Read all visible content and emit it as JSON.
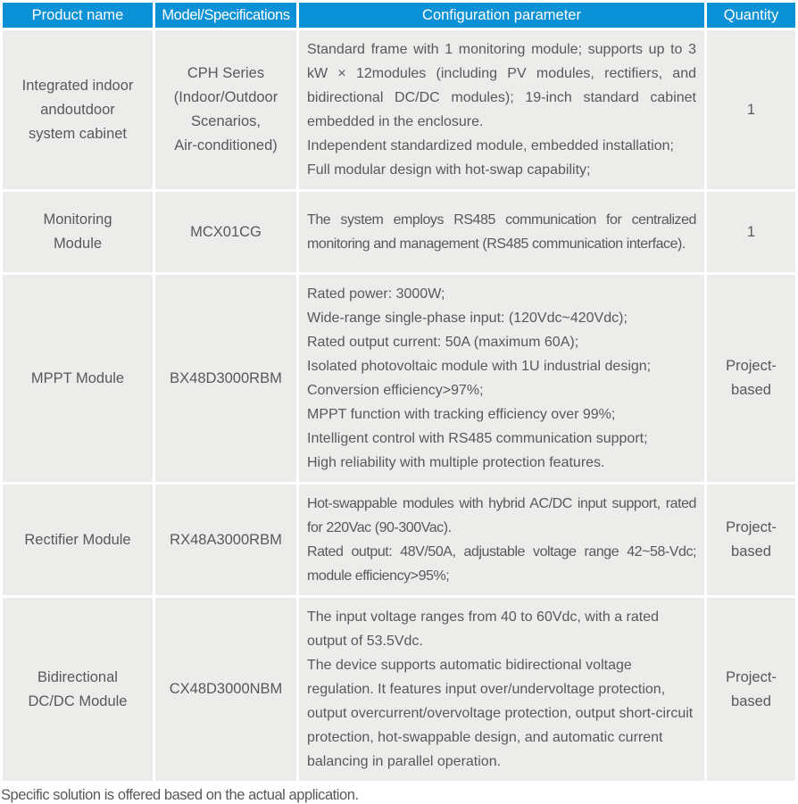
{
  "colors": {
    "header_bg": "#0b91d6",
    "header_text": "#ffffff",
    "cell_bg": "#ececea",
    "body_text": "#5a5858"
  },
  "table": {
    "columns": [
      {
        "label": "Product name"
      },
      {
        "label": "Model/Specifications"
      },
      {
        "label": "Configuration parameter"
      },
      {
        "label": "Quantity"
      }
    ],
    "rows": [
      {
        "product": "Integrated indoor\nandoutdoor\nsystem cabinet",
        "model": "CPH Series\n(Indoor/Outdoor\nScenarios,\nAir-conditioned)",
        "config": "Standard frame with 1 monitoring module; supports up to 3 kW × 12modules (including PV modules, rectifiers, and bidirectional DC/DC modules); 19-inch standard cabinet embedded in the enclosure.\nIndependent standardized module, embedded installation;\nFull modular design with hot-swap capability;",
        "quantity": "1"
      },
      {
        "product": "Monitoring\nModule",
        "model": "MCX01CG",
        "config": "The system employs RS485 communication for centralized monitoring and management (RS485 communication interface).",
        "quantity": "1"
      },
      {
        "product": "MPPT Module",
        "model": "BX48D3000RBM",
        "config": "Rated power: 3000W;\nWide-range single-phase input: (120Vdc~420Vdc);\nRated output current: 50A (maximum 60A);\nIsolated photovoltaic module with 1U industrial design;\nConversion efficiency>97%;\nMPPT function with tracking efficiency over 99%;\nIntelligent control with RS485 communication support;\nHigh reliability with multiple protection features.",
        "quantity": "Project-based"
      },
      {
        "product": "Rectifier Module",
        "model": "RX48A3000RBM",
        "config": "Hot-swappable modules with hybrid AC/DC input support, rated for 220Vac (90-300Vac).\nRated output: 48V/50A, adjustable voltage range 42~58-Vdc; module efficiency>95%;",
        "quantity": "Project-based"
      },
      {
        "product": "Bidirectional\nDC/DC Module",
        "model": "CX48D3000NBM",
        "config": "The input voltage ranges from 40 to 60Vdc, with a rated output of 53.5Vdc.\nThe device supports automatic bidirectional voltage regulation. It features input over/undervoltage protection, output overcurrent/overvoltage protection, output short-circuit protection, hot-swappable design, and automatic current balancing in parallel operation.",
        "quantity": "Project-based"
      }
    ]
  },
  "footer": {
    "note": "Specific solution is offered based on the actual application."
  }
}
